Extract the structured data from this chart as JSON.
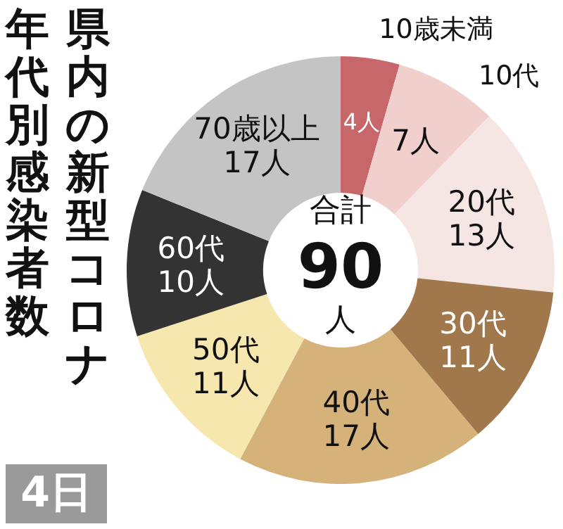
{
  "chart_data": {
    "type": "donut",
    "title": "県内の新型コロナ年代別感染者数",
    "categories": [
      "10歳未満",
      "10代",
      "20代",
      "30代",
      "40代",
      "50代",
      "60代",
      "70歳以上"
    ],
    "values": [
      4,
      7,
      13,
      11,
      17,
      11,
      10,
      17
    ],
    "value_labels": [
      "4人",
      "7人",
      "13人",
      "11人",
      "17人",
      "11人",
      "10人",
      "17人"
    ],
    "colors": [
      "#c8676a",
      "#f0cfcc",
      "#f6e6e3",
      "#a0784c",
      "#d4b27a",
      "#f5e7ae",
      "#333333",
      "#c4c4c4"
    ],
    "annotations": [
      "合計",
      "90",
      "人",
      "4日"
    ],
    "legend": false
  }
}
